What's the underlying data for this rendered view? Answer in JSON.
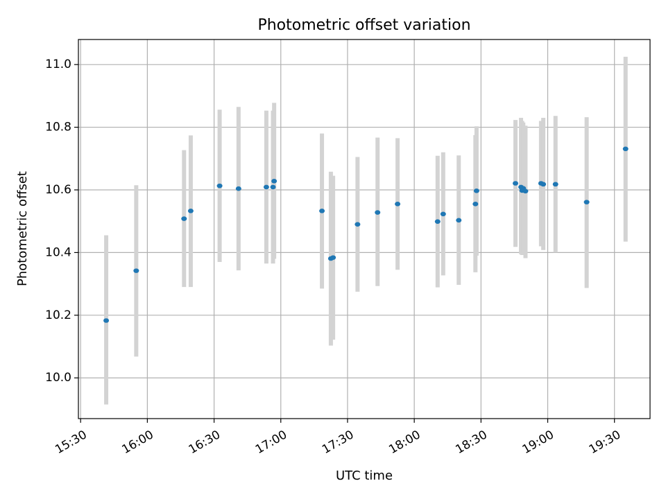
{
  "chart_data": {
    "type": "scatter",
    "title": "Photometric offset variation",
    "xlabel": "UTC time",
    "ylabel": "Photometric offset",
    "xlim": [
      "15:29",
      "19:46"
    ],
    "ylim": [
      9.87,
      11.08
    ],
    "xticks": [
      "15:30",
      "16:00",
      "16:30",
      "17:00",
      "17:30",
      "18:00",
      "18:30",
      "19:00",
      "19:30"
    ],
    "yticks": [
      "10.0",
      "10.2",
      "10.4",
      "10.6",
      "10.8",
      "11.0"
    ],
    "grid": true,
    "colors": {
      "point": "#1f77b4",
      "errorbar": "#d3d3d3",
      "grid": "#b0b0b0"
    },
    "points": [
      {
        "x": "15:41:30",
        "y": 10.183,
        "ylow": 9.915,
        "yhigh": 10.455
      },
      {
        "x": "15:55:00",
        "y": 10.342,
        "ylow": 10.068,
        "yhigh": 10.615
      },
      {
        "x": "16:16:30",
        "y": 10.508,
        "ylow": 10.29,
        "yhigh": 10.727
      },
      {
        "x": "16:19:30",
        "y": 10.533,
        "ylow": 10.29,
        "yhigh": 10.774
      },
      {
        "x": "16:32:30",
        "y": 10.613,
        "ylow": 10.37,
        "yhigh": 10.856
      },
      {
        "x": "16:41:00",
        "y": 10.604,
        "ylow": 10.343,
        "yhigh": 10.865
      },
      {
        "x": "16:53:30",
        "y": 10.609,
        "ylow": 10.365,
        "yhigh": 10.853
      },
      {
        "x": "16:56:30",
        "y": 10.609,
        "ylow": 10.365,
        "yhigh": 10.853
      },
      {
        "x": "16:57:00",
        "y": 10.628,
        "ylow": 10.38,
        "yhigh": 10.878
      },
      {
        "x": "17:18:30",
        "y": 10.533,
        "ylow": 10.285,
        "yhigh": 10.78
      },
      {
        "x": "17:22:30",
        "y": 10.381,
        "ylow": 10.103,
        "yhigh": 10.658
      },
      {
        "x": "17:23:30",
        "y": 10.384,
        "ylow": 10.122,
        "yhigh": 10.645
      },
      {
        "x": "17:34:30",
        "y": 10.49,
        "ylow": 10.275,
        "yhigh": 10.705
      },
      {
        "x": "17:43:30",
        "y": 10.528,
        "ylow": 10.293,
        "yhigh": 10.767
      },
      {
        "x": "17:52:30",
        "y": 10.555,
        "ylow": 10.345,
        "yhigh": 10.765
      },
      {
        "x": "18:10:30",
        "y": 10.499,
        "ylow": 10.289,
        "yhigh": 10.709
      },
      {
        "x": "18:13:00",
        "y": 10.523,
        "ylow": 10.327,
        "yhigh": 10.72
      },
      {
        "x": "18:20:00",
        "y": 10.503,
        "ylow": 10.297,
        "yhigh": 10.71
      },
      {
        "x": "18:27:30",
        "y": 10.555,
        "ylow": 10.337,
        "yhigh": 10.775
      },
      {
        "x": "18:28:00",
        "y": 10.597,
        "ylow": 10.39,
        "yhigh": 10.803
      },
      {
        "x": "18:45:30",
        "y": 10.621,
        "ylow": 10.418,
        "yhigh": 10.823
      },
      {
        "x": "18:48:00",
        "y": 10.609,
        "ylow": 10.395,
        "yhigh": 10.83
      },
      {
        "x": "18:48:30",
        "y": 10.598,
        "ylow": 10.392,
        "yhigh": 10.82
      },
      {
        "x": "18:49:00",
        "y": 10.605,
        "ylow": 10.4,
        "yhigh": 10.815
      },
      {
        "x": "18:50:00",
        "y": 10.596,
        "ylow": 10.382,
        "yhigh": 10.805
      },
      {
        "x": "18:57:00",
        "y": 10.621,
        "ylow": 10.42,
        "yhigh": 10.82
      },
      {
        "x": "18:58:00",
        "y": 10.618,
        "ylow": 10.408,
        "yhigh": 10.83
      },
      {
        "x": "19:03:30",
        "y": 10.618,
        "ylow": 10.4,
        "yhigh": 10.836
      },
      {
        "x": "19:17:30",
        "y": 10.561,
        "ylow": 10.287,
        "yhigh": 10.832
      },
      {
        "x": "19:35:00",
        "y": 10.731,
        "ylow": 10.435,
        "yhigh": 11.025
      }
    ]
  }
}
